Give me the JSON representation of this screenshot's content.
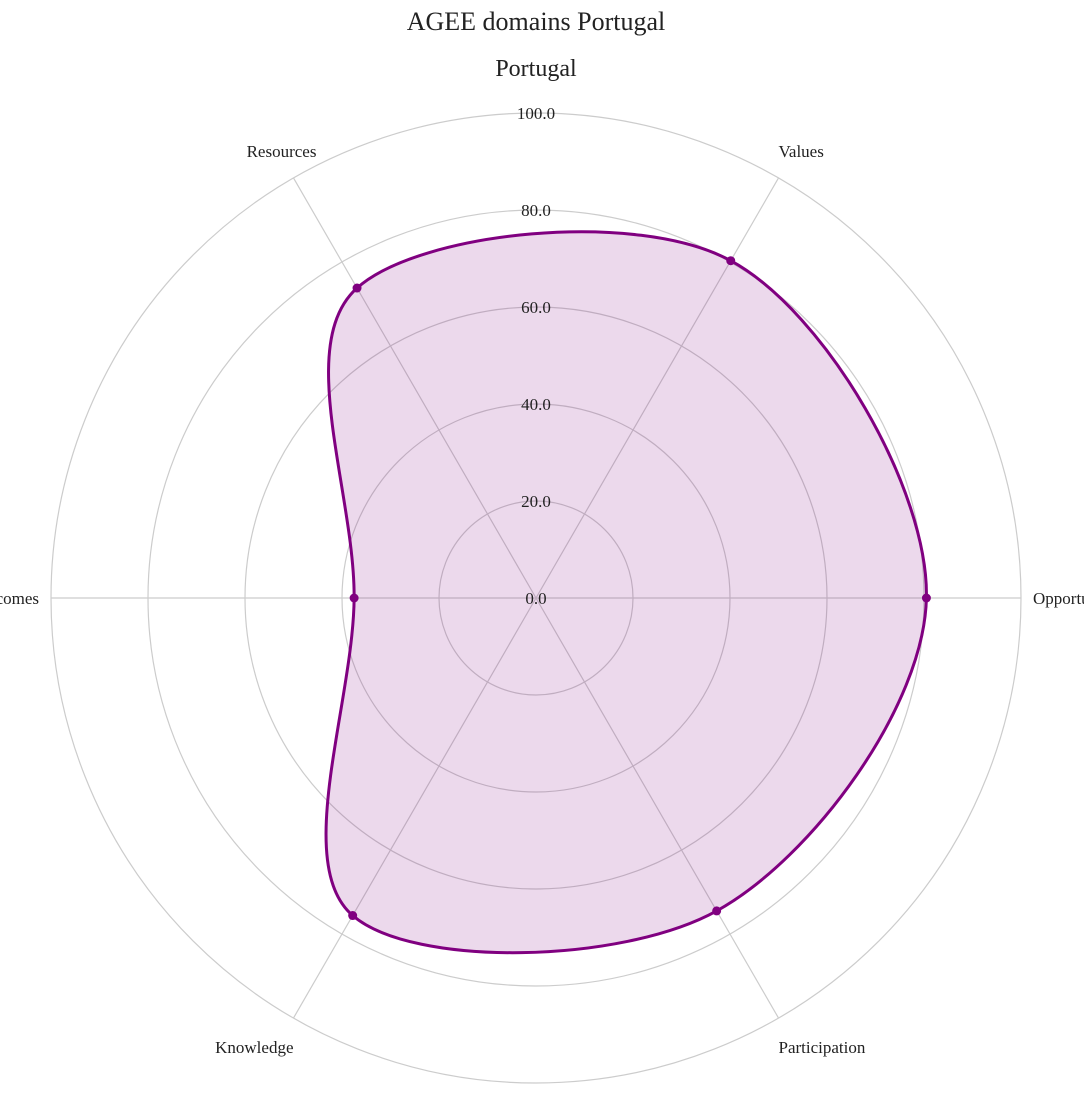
{
  "chart_data": {
    "type": "radar",
    "title": "AGEE domains Portugal",
    "subtitle": "Portugal",
    "categories": [
      "Opportunities",
      "Values",
      "Resources",
      "Outcomes",
      "Knowledge",
      "Participation"
    ],
    "series": [
      {
        "values": [
          80.5,
          80.3,
          73.8,
          37.5,
          75.6,
          74.5
        ]
      }
    ],
    "radial_ticks": [
      "0.0",
      "20.0",
      "40.0",
      "60.0",
      "80.0",
      "100.0"
    ],
    "rlim": [
      0,
      100
    ],
    "grid": true,
    "legend": "none",
    "colors": {
      "series_line": "#800080",
      "series_fill": "#800080",
      "series_fill_opacity": 0.15,
      "grid": "#cccccc",
      "text": "#222222"
    }
  }
}
